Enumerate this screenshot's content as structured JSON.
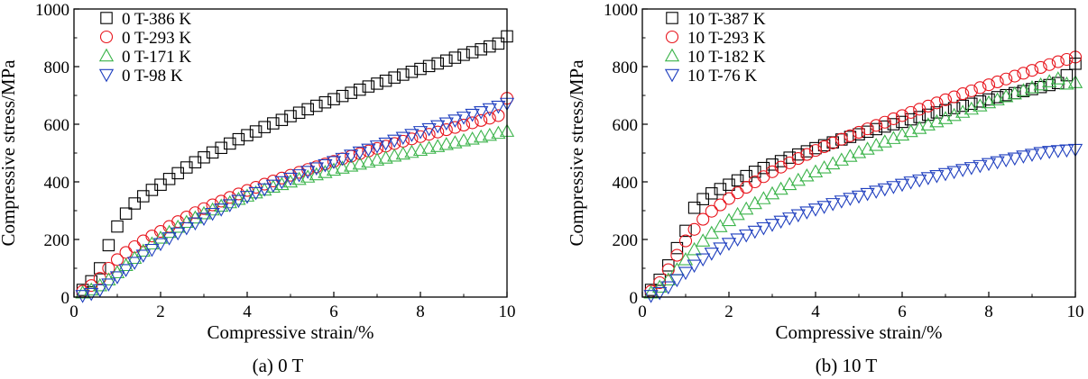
{
  "chart_data": [
    {
      "type": "scatter",
      "caption": "(a) 0 T",
      "xlabel": "Compressive strain/%",
      "ylabel": "Compressive stress/MPa",
      "xlim": [
        0,
        10
      ],
      "ylim": [
        0,
        1000
      ],
      "xticks": [
        "0",
        "2",
        "4",
        "6",
        "8",
        "10"
      ],
      "yticks": [
        "0",
        "200",
        "400",
        "600",
        "800",
        "1000"
      ],
      "legend_position": "top-left",
      "series": [
        {
          "name": "0 T-386 K",
          "marker": "square",
          "color": "#000000",
          "x": [
            0.2,
            0.4,
            0.6,
            0.8,
            1.0,
            1.2,
            1.4,
            1.6,
            1.8,
            2.0,
            2.2,
            2.4,
            2.6,
            2.8,
            3.0,
            3.2,
            3.4,
            3.6,
            3.8,
            4.0,
            4.2,
            4.4,
            4.6,
            4.8,
            5.0,
            5.2,
            5.4,
            5.6,
            5.8,
            6.0,
            6.2,
            6.4,
            6.6,
            6.8,
            7.0,
            7.2,
            7.4,
            7.6,
            7.8,
            8.0,
            8.2,
            8.4,
            8.6,
            8.8,
            9.0,
            9.2,
            9.4,
            9.6,
            9.8,
            10.0
          ],
          "y": [
            25,
            55,
            100,
            180,
            245,
            290,
            325,
            350,
            372,
            390,
            410,
            430,
            450,
            468,
            485,
            502,
            518,
            533,
            548,
            562,
            575,
            590,
            603,
            615,
            628,
            640,
            652,
            664,
            676,
            687,
            698,
            709,
            720,
            731,
            741,
            751,
            762,
            772,
            782,
            792,
            802,
            811,
            821,
            831,
            841,
            850,
            860,
            870,
            880,
            905
          ]
        },
        {
          "name": "0 T-293 K",
          "marker": "circle",
          "color": "#e8141c",
          "x": [
            0.2,
            0.4,
            0.6,
            0.8,
            1.0,
            1.2,
            1.4,
            1.6,
            1.8,
            2.0,
            2.2,
            2.4,
            2.6,
            2.8,
            3.0,
            3.2,
            3.4,
            3.6,
            3.8,
            4.0,
            4.2,
            4.4,
            4.6,
            4.8,
            5.0,
            5.2,
            5.4,
            5.6,
            5.8,
            6.0,
            6.2,
            6.4,
            6.6,
            6.8,
            7.0,
            7.2,
            7.4,
            7.6,
            7.8,
            8.0,
            8.2,
            8.4,
            8.6,
            8.8,
            9.0,
            9.2,
            9.4,
            9.6,
            9.8,
            10.0
          ],
          "y": [
            20,
            40,
            65,
            100,
            130,
            155,
            175,
            195,
            212,
            228,
            245,
            262,
            278,
            293,
            307,
            320,
            333,
            346,
            358,
            370,
            381,
            392,
            403,
            413,
            423,
            433,
            443,
            452,
            462,
            471,
            480,
            489,
            498,
            507,
            516,
            524,
            533,
            541,
            549,
            557,
            565,
            573,
            581,
            589,
            597,
            605,
            613,
            621,
            630,
            690
          ]
        },
        {
          "name": "0 T-171 K",
          "marker": "triangle-up",
          "color": "#3cb44b",
          "x": [
            0.2,
            0.4,
            0.6,
            0.8,
            1.0,
            1.2,
            1.4,
            1.6,
            1.8,
            2.0,
            2.2,
            2.4,
            2.6,
            2.8,
            3.0,
            3.2,
            3.4,
            3.6,
            3.8,
            4.0,
            4.2,
            4.4,
            4.6,
            4.8,
            5.0,
            5.2,
            5.4,
            5.6,
            5.8,
            6.0,
            6.2,
            6.4,
            6.6,
            6.8,
            7.0,
            7.2,
            7.4,
            7.6,
            7.8,
            8.0,
            8.2,
            8.4,
            8.6,
            8.8,
            9.0,
            9.2,
            9.4,
            9.6,
            9.8,
            10.0
          ],
          "y": [
            15,
            25,
            40,
            60,
            85,
            110,
            135,
            160,
            185,
            205,
            225,
            243,
            260,
            275,
            290,
            303,
            316,
            328,
            340,
            351,
            362,
            372,
            382,
            391,
            400,
            409,
            417,
            425,
            433,
            441,
            448,
            455,
            462,
            469,
            476,
            483,
            490,
            497,
            503,
            510,
            517,
            523,
            530,
            536,
            543,
            549,
            556,
            562,
            569,
            576
          ]
        },
        {
          "name": "0 T-98 K",
          "marker": "triangle-down",
          "color": "#1f3fbf",
          "x": [
            0.2,
            0.4,
            0.6,
            0.8,
            1.0,
            1.2,
            1.4,
            1.6,
            1.8,
            2.0,
            2.2,
            2.4,
            2.6,
            2.8,
            3.0,
            3.2,
            3.4,
            3.6,
            3.8,
            4.0,
            4.2,
            4.4,
            4.6,
            4.8,
            5.0,
            5.2,
            5.4,
            5.6,
            5.8,
            6.0,
            6.2,
            6.4,
            6.6,
            6.8,
            7.0,
            7.2,
            7.4,
            7.6,
            7.8,
            8.0,
            8.2,
            8.4,
            8.6,
            8.8,
            9.0,
            9.2,
            9.4,
            9.6,
            9.8,
            10.0
          ],
          "y": [
            5,
            12,
            25,
            45,
            70,
            95,
            120,
            145,
            165,
            185,
            205,
            222,
            240,
            257,
            273,
            290,
            305,
            320,
            335,
            349,
            362,
            375,
            388,
            400,
            412,
            424,
            436,
            448,
            459,
            470,
            481,
            492,
            503,
            513,
            524,
            534,
            544,
            554,
            564,
            574,
            584,
            594,
            604,
            614,
            624,
            634,
            643,
            653,
            662,
            672
          ]
        }
      ]
    },
    {
      "type": "scatter",
      "caption": "(b) 10 T",
      "xlabel": "Compressive strain/%",
      "ylabel": "Compressive stress/MPa",
      "xlim": [
        0,
        10
      ],
      "ylim": [
        0,
        1000
      ],
      "xticks": [
        "0",
        "2",
        "4",
        "6",
        "8",
        "10"
      ],
      "yticks": [
        "0",
        "200",
        "400",
        "600",
        "800",
        "1000"
      ],
      "legend_position": "top-left",
      "series": [
        {
          "name": "10 T-387 K",
          "marker": "square",
          "color": "#000000",
          "x": [
            0.2,
            0.4,
            0.6,
            0.8,
            1.0,
            1.2,
            1.4,
            1.6,
            1.8,
            2.0,
            2.2,
            2.4,
            2.6,
            2.8,
            3.0,
            3.2,
            3.4,
            3.6,
            3.8,
            4.0,
            4.2,
            4.4,
            4.6,
            4.8,
            5.0,
            5.2,
            5.4,
            5.6,
            5.8,
            6.0,
            6.2,
            6.4,
            6.6,
            6.8,
            7.0,
            7.2,
            7.4,
            7.6,
            7.8,
            8.0,
            8.2,
            8.4,
            8.6,
            8.8,
            9.0,
            9.2,
            9.4,
            9.6,
            9.8,
            10.0
          ],
          "y": [
            25,
            60,
            110,
            170,
            230,
            310,
            340,
            360,
            375,
            390,
            405,
            420,
            435,
            448,
            460,
            472,
            484,
            495,
            506,
            517,
            527,
            537,
            547,
            556,
            565,
            574,
            583,
            592,
            600,
            608,
            617,
            625,
            633,
            641,
            649,
            656,
            664,
            671,
            679,
            686,
            694,
            701,
            708,
            715,
            722,
            729,
            736,
            743,
            770,
            810
          ]
        },
        {
          "name": "10 T-293 K",
          "marker": "circle",
          "color": "#e8141c",
          "x": [
            0.2,
            0.4,
            0.6,
            0.8,
            1.0,
            1.2,
            1.4,
            1.6,
            1.8,
            2.0,
            2.2,
            2.4,
            2.6,
            2.8,
            3.0,
            3.2,
            3.4,
            3.6,
            3.8,
            4.0,
            4.2,
            4.4,
            4.6,
            4.8,
            5.0,
            5.2,
            5.4,
            5.6,
            5.8,
            6.0,
            6.2,
            6.4,
            6.6,
            6.8,
            7.0,
            7.2,
            7.4,
            7.6,
            7.8,
            8.0,
            8.2,
            8.4,
            8.6,
            8.8,
            9.0,
            9.2,
            9.4,
            9.6,
            9.8,
            10.0
          ],
          "y": [
            20,
            50,
            95,
            145,
            195,
            235,
            270,
            298,
            320,
            342,
            362,
            381,
            400,
            418,
            435,
            451,
            466,
            481,
            495,
            509,
            522,
            535,
            548,
            560,
            572,
            584,
            596,
            607,
            619,
            630,
            641,
            652,
            663,
            674,
            685,
            695,
            706,
            716,
            727,
            737,
            747,
            757,
            767,
            777,
            787,
            797,
            807,
            817,
            825,
            833
          ]
        },
        {
          "name": "10 T-182 K",
          "marker": "triangle-up",
          "color": "#3cb44b",
          "x": [
            0.2,
            0.4,
            0.6,
            0.8,
            1.0,
            1.2,
            1.4,
            1.6,
            1.8,
            2.0,
            2.2,
            2.4,
            2.6,
            2.8,
            3.0,
            3.2,
            3.4,
            3.6,
            3.8,
            4.0,
            4.2,
            4.4,
            4.6,
            4.8,
            5.0,
            5.2,
            5.4,
            5.6,
            5.8,
            6.0,
            6.2,
            6.4,
            6.6,
            6.8,
            7.0,
            7.2,
            7.4,
            7.6,
            7.8,
            8.0,
            8.2,
            8.4,
            8.6,
            8.8,
            9.0,
            9.2,
            9.4,
            9.6,
            9.8,
            10.0
          ],
          "y": [
            15,
            35,
            60,
            95,
            130,
            165,
            195,
            222,
            245,
            266,
            287,
            306,
            325,
            342,
            359,
            375,
            391,
            406,
            421,
            435,
            449,
            463,
            476,
            489,
            502,
            514,
            527,
            539,
            551,
            563,
            575,
            586,
            598,
            609,
            620,
            631,
            642,
            653,
            664,
            675,
            685,
            696,
            706,
            717,
            727,
            737,
            748,
            758,
            740,
            745
          ]
        },
        {
          "name": "10 T-76 K",
          "marker": "triangle-down",
          "color": "#1f3fbf",
          "x": [
            0.2,
            0.4,
            0.6,
            0.8,
            1.0,
            1.2,
            1.4,
            1.6,
            1.8,
            2.0,
            2.2,
            2.4,
            2.6,
            2.8,
            3.0,
            3.2,
            3.4,
            3.6,
            3.8,
            4.0,
            4.2,
            4.4,
            4.6,
            4.8,
            5.0,
            5.2,
            5.4,
            5.6,
            5.8,
            6.0,
            6.2,
            6.4,
            6.6,
            6.8,
            7.0,
            7.2,
            7.4,
            7.6,
            7.8,
            8.0,
            8.2,
            8.4,
            8.6,
            8.8,
            9.0,
            9.2,
            9.4,
            9.6,
            9.8,
            10.0
          ],
          "y": [
            5,
            15,
            35,
            60,
            85,
            110,
            132,
            152,
            170,
            186,
            201,
            215,
            228,
            240,
            252,
            263,
            274,
            285,
            295,
            305,
            314,
            324,
            333,
            342,
            350,
            359,
            367,
            375,
            383,
            391,
            399,
            406,
            414,
            421,
            428,
            435,
            442,
            449,
            456,
            463,
            469,
            476,
            482,
            489,
            495,
            501,
            505,
            508,
            510,
            512
          ]
        }
      ]
    }
  ]
}
